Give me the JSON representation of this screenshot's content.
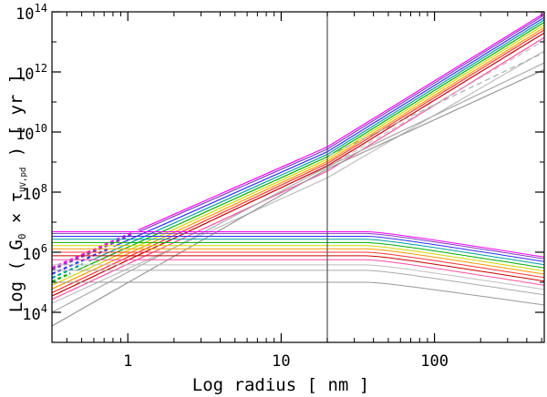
{
  "chart_data": {
    "type": "line",
    "xscale": "log",
    "yscale": "log",
    "xlim": [
      0.32,
      520
    ],
    "ylim": [
      1000,
      100000000000000
    ],
    "xlabel": "Log radius [ nm ]",
    "ylabel": {
      "prefix": "Log ( G",
      "g_sub": "0",
      "mid": " × τ",
      "tau_sub": "UV,pd",
      "suffix": " ) [ yr ]"
    },
    "x_ticks": [
      {
        "value": 1,
        "label": "1"
      },
      {
        "value": 10,
        "label": "10"
      },
      {
        "value": 100,
        "label": "100"
      }
    ],
    "y_ticks": [
      {
        "value": 10000,
        "base": "10",
        "exp": "4"
      },
      {
        "value": 1000000,
        "base": "10",
        "exp": "6"
      },
      {
        "value": 100000000,
        "base": "10",
        "exp": "8"
      },
      {
        "value": 10000000000,
        "base": "10",
        "exp": "10"
      },
      {
        "value": 1000000000000,
        "base": "10",
        "exp": "12"
      },
      {
        "value": 100000000000000,
        "base": "10",
        "exp": "14"
      }
    ],
    "vertical_line_x": 20,
    "series_upper": [
      {
        "color": "#ff00ff",
        "y_at_0_32": 300000,
        "y_at_20": 3200000000,
        "y_at_520": 90000000000000,
        "dashed_below": 1.1
      },
      {
        "color": "#7f3fbf",
        "y_at_0_32": 260000,
        "y_at_20": 2700000000,
        "y_at_520": 78000000000000,
        "dashed_below": 1.1
      },
      {
        "color": "#3030ff",
        "y_at_0_32": 190000,
        "y_at_20": 2200000000,
        "y_at_520": 65000000000000,
        "dashed_below": 0.8
      },
      {
        "color": "#00a0a0",
        "y_at_0_32": 140000,
        "y_at_20": 1800000000,
        "y_at_520": 54000000000000,
        "dashed_below": 0.55
      },
      {
        "color": "#00b000",
        "y_at_0_32": 105000,
        "y_at_20": 1500000000,
        "y_at_520": 45000000000000,
        "dashed_below": 0.45
      },
      {
        "color": "#d4d400",
        "y_at_0_32": 80000,
        "y_at_20": 1250000000,
        "y_at_520": 37000000000000,
        "dashed_below": 0.32
      },
      {
        "color": "#ff9900",
        "y_at_0_32": 60000,
        "y_at_20": 1050000000,
        "y_at_520": 30000000000000,
        "dashed_below": 0.32
      },
      {
        "color": "#ff3333",
        "y_at_0_32": 45000,
        "y_at_20": 900000000,
        "y_at_520": 25000000000000,
        "dashed_below": 0.32
      },
      {
        "color": "#cc0000",
        "y_at_0_32": 35000,
        "y_at_20": 750000000,
        "y_at_520": 20000000000000,
        "dashed_below": 0.32
      },
      {
        "color": "#ff4fa0",
        "y_at_0_32": 27000,
        "y_at_20": 500000000,
        "y_at_520": 14000000000000,
        "dashed_below": 0.32
      },
      {
        "color": "#bfbfbf",
        "y_at_0_32": 20000,
        "y_at_20": 300000000,
        "y_at_520": 5000000000000,
        "dashed_below": 0.32
      },
      {
        "color": "#aaaaaa",
        "y_at_0_32": 10000,
        "y_at_20": 700000000,
        "y_at_520": 2000000000000,
        "dashed_below": 0.32
      },
      {
        "color": "#999999",
        "y_at_0_32": 3500,
        "y_at_20": 600000000,
        "y_at_520": 1200000000000,
        "dashed_below": 0.32
      }
    ],
    "series_lower": [
      {
        "color": "#ff00ff",
        "plateau": 4800000,
        "y_at_520": 540000
      },
      {
        "color": "#7f3fbf",
        "plateau": 4200000,
        "y_at_520": 470000
      },
      {
        "color": "#3030ff",
        "plateau": 3400000,
        "y_at_520": 380000
      },
      {
        "color": "#00a0a0",
        "plateau": 2700000,
        "y_at_520": 300000
      },
      {
        "color": "#00b000",
        "plateau": 2100000,
        "y_at_520": 235000
      },
      {
        "color": "#d4d400",
        "plateau": 1650000,
        "y_at_520": 185000
      },
      {
        "color": "#ff9900",
        "plateau": 1300000,
        "y_at_520": 145000
      },
      {
        "color": "#ff3333",
        "plateau": 1000000,
        "y_at_520": 112000
      },
      {
        "color": "#cc0000",
        "plateau": 760000,
        "y_at_520": 85000
      },
      {
        "color": "#ff4fa0",
        "plateau": 560000,
        "y_at_520": 62000
      },
      {
        "color": "#bfbfbf",
        "plateau": 380000,
        "y_at_520": 45000
      },
      {
        "color": "#aaaaaa",
        "plateau": 250000,
        "y_at_520": 30000
      },
      {
        "color": "#999999",
        "plateau": 100000,
        "y_at_520": 14000
      }
    ]
  }
}
